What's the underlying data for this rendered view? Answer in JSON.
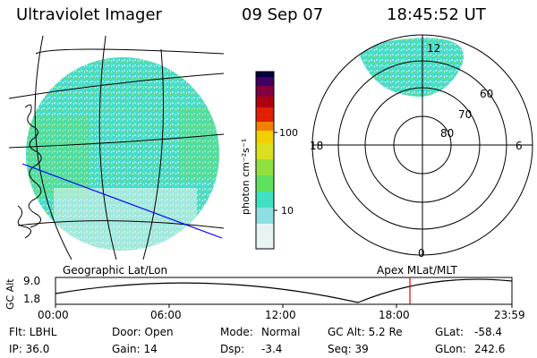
{
  "header": {
    "instrument": "Ultraviolet Imager",
    "date": "09 Sep 07",
    "time": "18:45:52 UT"
  },
  "colorbar": {
    "unit_label": "photon cm⁻²s⁻¹",
    "tick_100": "100",
    "tick_10": "10",
    "colors": [
      "#e8f4f4",
      "#c8ecec",
      "#8ee0e0",
      "#40e0c0",
      "#60e060",
      "#90e040",
      "#d8e020",
      "#f0d000",
      "#f08000",
      "#e02000",
      "#b00010",
      "#800040",
      "#400060",
      "#000040"
    ]
  },
  "map_label": "Geographic Lat/Lon",
  "polar_plot": {
    "label": "Apex  MLat/MLT",
    "mlt_top": "12",
    "mlt_left": "18",
    "mlt_right": "6",
    "mlt_bottom": "0",
    "lat_60": "60",
    "lat_70": "70",
    "lat_80": "80"
  },
  "altitude_plot": {
    "axis_title": "GC Alt",
    "y_top": "9.0",
    "y_bottom": "1.8",
    "x_ticks": [
      "00:00",
      "06:00",
      "12:00",
      "18:00",
      "23:59"
    ]
  },
  "status": {
    "flt": "Flt: LBHL",
    "door": "Door: Open",
    "mode_label": "Mode:",
    "mode_value": "Normal",
    "gc_alt": "GC Alt: 5.2 Re",
    "glat_label": "GLat:",
    "glat_value": "-58.4",
    "ip": "IP: 36.0",
    "gain": "Gain: 14",
    "dsp_label": "Dsp:",
    "dsp_value": "-3.4",
    "seq": "Seq: 39",
    "glon_label": "GLon:",
    "glon_value": "242.6"
  },
  "colors": {
    "aurora_fill": "#48dcc8",
    "aurora_speckle": "#a8e6e6",
    "aurora_green": "#80e050",
    "marker": "#e00000",
    "track": "#0000ff"
  }
}
